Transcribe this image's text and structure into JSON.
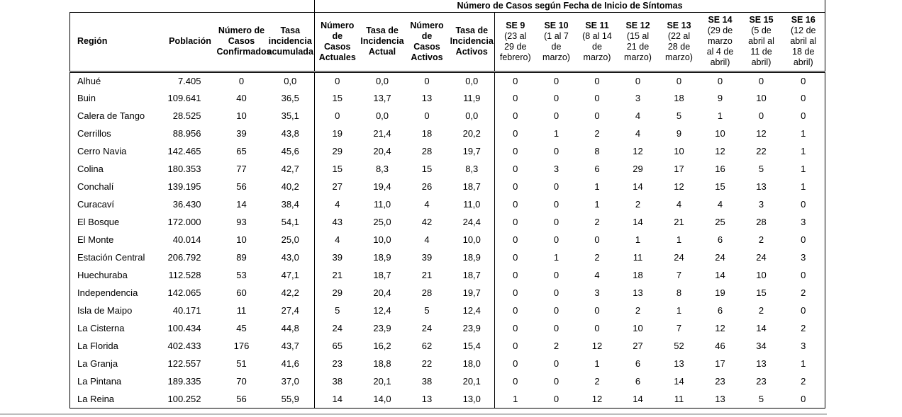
{
  "table": {
    "span_header": "Número de Casos según Fecha de Inicio de Síntomas",
    "columns": [
      {
        "key": "region",
        "label": "Región"
      },
      {
        "key": "poblacion",
        "label": "Población"
      },
      {
        "key": "casos-confirmados",
        "label": "Número de\nCasos\nConfirmados"
      },
      {
        "key": "tasa-incidencia-acumulada",
        "label": "Tasa\nincidencia\nacumulada"
      },
      {
        "key": "casos-actuales",
        "label": "Número\nde\nCasos\nActuales"
      },
      {
        "key": "tasa-incidencia-actual",
        "label": "Tasa de\nIncidencia\nActual"
      },
      {
        "key": "casos-activos",
        "label": "Número\nde\nCasos\nActivos"
      },
      {
        "key": "tasa-incidencia-activos",
        "label": "Tasa de\nIncidencia\nActivos"
      },
      {
        "key": "se-9",
        "label": "SE 9",
        "sublabel": "(23 al\n29 de\nfebrero)"
      },
      {
        "key": "se-10",
        "label": "SE 10",
        "sublabel": "(1 al 7\nde\nmarzo)"
      },
      {
        "key": "se-11",
        "label": "SE 11",
        "sublabel": "(8 al 14\nde\nmarzo)"
      },
      {
        "key": "se-12",
        "label": "SE 12",
        "sublabel": "(15 al\n21 de\nmarzo)"
      },
      {
        "key": "se-13",
        "label": "SE 13",
        "sublabel": "(22 al\n28 de\nmarzo)"
      },
      {
        "key": "se-14",
        "label": "SE 14",
        "sublabel": "(29 de\nmarzo\nal 4 de\nabril)"
      },
      {
        "key": "se-15",
        "label": "SE 15",
        "sublabel": "(5 de\nabril al\n11 de\nabril)"
      },
      {
        "key": "se-16",
        "label": "SE 16",
        "sublabel": "(12 de\nabril al\n18 de\nabril)"
      }
    ],
    "rows": [
      [
        "Alhué",
        "7.405",
        "0",
        "0,0",
        "0",
        "0,0",
        "0",
        "0,0",
        "0",
        "0",
        "0",
        "0",
        "0",
        "0",
        "0",
        "0"
      ],
      [
        "Buin",
        "109.641",
        "40",
        "36,5",
        "15",
        "13,7",
        "13",
        "11,9",
        "0",
        "0",
        "0",
        "3",
        "18",
        "9",
        "10",
        "0"
      ],
      [
        "Calera de Tango",
        "28.525",
        "10",
        "35,1",
        "0",
        "0,0",
        "0",
        "0,0",
        "0",
        "0",
        "0",
        "4",
        "5",
        "1",
        "0",
        "0"
      ],
      [
        "Cerrillos",
        "88.956",
        "39",
        "43,8",
        "19",
        "21,4",
        "18",
        "20,2",
        "0",
        "1",
        "2",
        "4",
        "9",
        "10",
        "12",
        "1"
      ],
      [
        "Cerro Navia",
        "142.465",
        "65",
        "45,6",
        "29",
        "20,4",
        "28",
        "19,7",
        "0",
        "0",
        "8",
        "12",
        "10",
        "12",
        "22",
        "1"
      ],
      [
        "Colina",
        "180.353",
        "77",
        "42,7",
        "15",
        "8,3",
        "15",
        "8,3",
        "0",
        "3",
        "6",
        "29",
        "17",
        "16",
        "5",
        "1"
      ],
      [
        "Conchalí",
        "139.195",
        "56",
        "40,2",
        "27",
        "19,4",
        "26",
        "18,7",
        "0",
        "0",
        "1",
        "14",
        "12",
        "15",
        "13",
        "1"
      ],
      [
        "Curacaví",
        "36.430",
        "14",
        "38,4",
        "4",
        "11,0",
        "4",
        "11,0",
        "0",
        "0",
        "1",
        "2",
        "4",
        "4",
        "3",
        "0"
      ],
      [
        "El Bosque",
        "172.000",
        "93",
        "54,1",
        "43",
        "25,0",
        "42",
        "24,4",
        "0",
        "0",
        "2",
        "14",
        "21",
        "25",
        "28",
        "3"
      ],
      [
        "El Monte",
        "40.014",
        "10",
        "25,0",
        "4",
        "10,0",
        "4",
        "10,0",
        "0",
        "0",
        "0",
        "1",
        "1",
        "6",
        "2",
        "0"
      ],
      [
        "Estación Central",
        "206.792",
        "89",
        "43,0",
        "39",
        "18,9",
        "39",
        "18,9",
        "0",
        "1",
        "2",
        "11",
        "24",
        "24",
        "24",
        "3"
      ],
      [
        "Huechuraba",
        "112.528",
        "53",
        "47,1",
        "21",
        "18,7",
        "21",
        "18,7",
        "0",
        "0",
        "4",
        "18",
        "7",
        "14",
        "10",
        "0"
      ],
      [
        "Independencia",
        "142.065",
        "60",
        "42,2",
        "29",
        "20,4",
        "28",
        "19,7",
        "0",
        "0",
        "3",
        "13",
        "8",
        "19",
        "15",
        "2"
      ],
      [
        "Isla de Maipo",
        "40.171",
        "11",
        "27,4",
        "5",
        "12,4",
        "5",
        "12,4",
        "0",
        "0",
        "0",
        "2",
        "1",
        "6",
        "2",
        "0"
      ],
      [
        "La Cisterna",
        "100.434",
        "45",
        "44,8",
        "24",
        "23,9",
        "24",
        "23,9",
        "0",
        "0",
        "0",
        "10",
        "7",
        "12",
        "14",
        "2"
      ],
      [
        "La Florida",
        "402.433",
        "176",
        "43,7",
        "65",
        "16,2",
        "62",
        "15,4",
        "0",
        "2",
        "12",
        "27",
        "52",
        "46",
        "34",
        "3"
      ],
      [
        "La Granja",
        "122.557",
        "51",
        "41,6",
        "23",
        "18,8",
        "22",
        "18,0",
        "0",
        "0",
        "1",
        "6",
        "13",
        "17",
        "13",
        "1"
      ],
      [
        "La Pintana",
        "189.335",
        "70",
        "37,0",
        "38",
        "20,1",
        "38",
        "20,1",
        "0",
        "0",
        "2",
        "6",
        "14",
        "23",
        "23",
        "2"
      ],
      [
        "La Reina",
        "100.252",
        "56",
        "55,9",
        "14",
        "14,0",
        "13",
        "13,0",
        "1",
        "0",
        "12",
        "14",
        "11",
        "13",
        "5",
        "0"
      ]
    ]
  }
}
